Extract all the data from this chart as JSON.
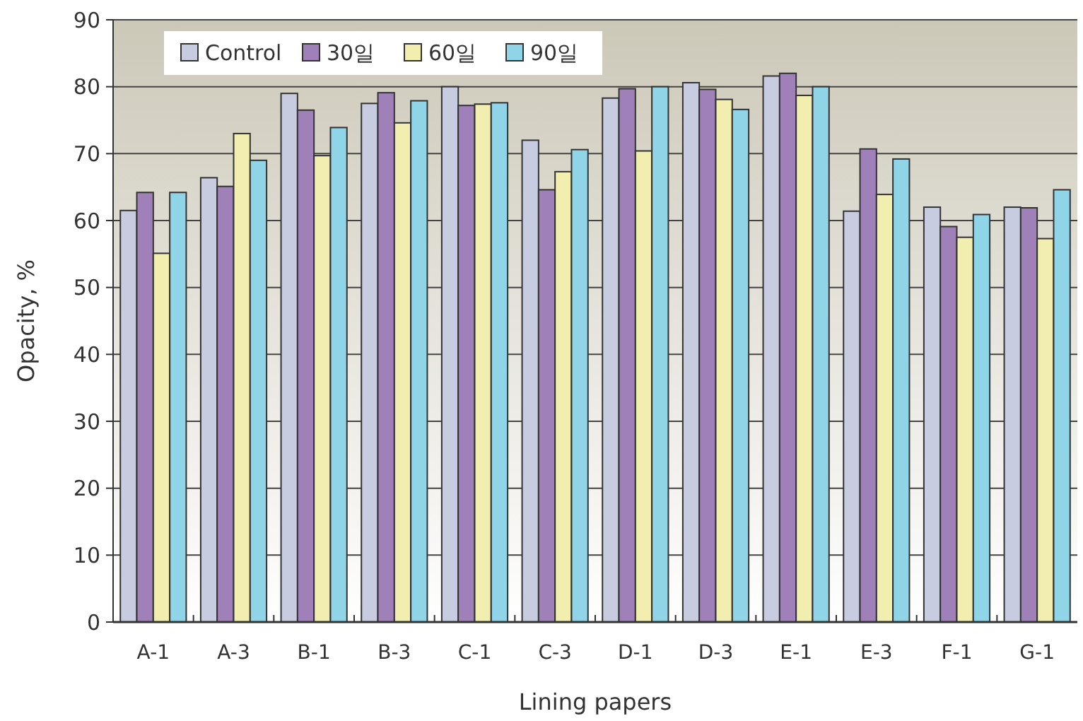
{
  "chart_data": {
    "type": "bar",
    "xlabel": "Lining papers",
    "ylabel": "Opacity, %",
    "categories": [
      "A-1",
      "A-3",
      "B-1",
      "B-3",
      "C-1",
      "C-3",
      "D-1",
      "D-3",
      "E-1",
      "E-3",
      "F-1",
      "G-1"
    ],
    "series": [
      {
        "name": "Control",
        "color": "#c8cce0",
        "values": [
          61.5,
          66.4,
          79.0,
          77.5,
          80.0,
          72.0,
          78.3,
          80.6,
          81.6,
          61.4,
          62.0,
          62.0
        ]
      },
      {
        "name": "30일",
        "color": "#a080b8",
        "values": [
          64.2,
          65.1,
          76.5,
          79.1,
          77.2,
          64.6,
          79.7,
          79.6,
          82.0,
          70.7,
          59.1,
          61.9
        ]
      },
      {
        "name": "60일",
        "color": "#f2eeb0",
        "values": [
          55.1,
          73.0,
          69.7,
          74.6,
          77.4,
          67.3,
          70.4,
          78.1,
          78.7,
          63.9,
          57.5,
          57.3
        ]
      },
      {
        "name": "90일",
        "color": "#90d4e8",
        "values": [
          64.2,
          69.0,
          73.9,
          77.9,
          77.6,
          70.6,
          80.0,
          76.6,
          80.0,
          69.2,
          60.9,
          64.6
        ]
      }
    ],
    "ylim": [
      0,
      90
    ],
    "yticks": [
      0,
      10,
      20,
      30,
      40,
      50,
      60,
      70,
      80,
      90
    ],
    "grid": "y",
    "legend": "top left"
  }
}
